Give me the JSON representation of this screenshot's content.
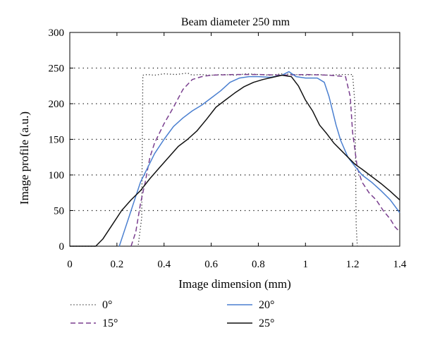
{
  "chart_data": {
    "type": "line",
    "title": "Beam diameter 250 mm",
    "xlabel": "Image dimension (mm)",
    "ylabel": "Image profile (a.u.)",
    "xlim": [
      0,
      1.4
    ],
    "ylim": [
      0,
      300
    ],
    "xticks": [
      "0",
      "0.2",
      "0.4",
      "0.6",
      "0.8",
      "1",
      "1.2",
      "1.4"
    ],
    "yticks": [
      "0",
      "50",
      "100",
      "150",
      "200",
      "250",
      "300"
    ],
    "grid": "dotted horizontal",
    "legend_position": "bottom",
    "series": [
      {
        "name": "0°",
        "color": "#333333",
        "style": "dotted",
        "points": [
          [
            0,
            0
          ],
          [
            0.29,
            0
          ],
          [
            0.305,
            40
          ],
          [
            0.31,
            240
          ],
          [
            0.33,
            241
          ],
          [
            0.36,
            240
          ],
          [
            0.4,
            242
          ],
          [
            0.45,
            241
          ],
          [
            0.5,
            243
          ],
          [
            0.52,
            240
          ],
          [
            0.55,
            241
          ],
          [
            0.6,
            240
          ],
          [
            0.65,
            241
          ],
          [
            0.7,
            240
          ],
          [
            0.75,
            242
          ],
          [
            0.8,
            241
          ],
          [
            0.85,
            240
          ],
          [
            0.9,
            242
          ],
          [
            0.95,
            241
          ],
          [
            1.0,
            240
          ],
          [
            1.05,
            241
          ],
          [
            1.1,
            240
          ],
          [
            1.15,
            241
          ],
          [
            1.2,
            241
          ],
          [
            1.21,
            200
          ],
          [
            1.215,
            30
          ],
          [
            1.22,
            0
          ],
          [
            1.4,
            0
          ]
        ]
      },
      {
        "name": "15°",
        "color": "#7a3f8f",
        "style": "dashed",
        "points": [
          [
            0.26,
            0
          ],
          [
            0.28,
            20
          ],
          [
            0.3,
            60
          ],
          [
            0.32,
            90
          ],
          [
            0.34,
            125
          ],
          [
            0.36,
            145
          ],
          [
            0.4,
            172
          ],
          [
            0.44,
            195
          ],
          [
            0.48,
            220
          ],
          [
            0.52,
            234
          ],
          [
            0.56,
            238
          ],
          [
            0.6,
            240
          ],
          [
            0.7,
            241
          ],
          [
            0.8,
            241
          ],
          [
            0.9,
            240
          ],
          [
            1.0,
            241
          ],
          [
            1.1,
            240
          ],
          [
            1.17,
            238
          ],
          [
            1.19,
            210
          ],
          [
            1.2,
            160
          ],
          [
            1.22,
            110
          ],
          [
            1.24,
            90
          ],
          [
            1.27,
            75
          ],
          [
            1.3,
            65
          ],
          [
            1.33,
            50
          ],
          [
            1.36,
            38
          ],
          [
            1.38,
            27
          ],
          [
            1.4,
            20
          ]
        ]
      },
      {
        "name": "20°",
        "color": "#4a7fd0",
        "style": "solid",
        "points": [
          [
            0.21,
            0
          ],
          [
            0.23,
            20
          ],
          [
            0.25,
            40
          ],
          [
            0.28,
            70
          ],
          [
            0.3,
            90
          ],
          [
            0.33,
            110
          ],
          [
            0.36,
            130
          ],
          [
            0.4,
            150
          ],
          [
            0.44,
            168
          ],
          [
            0.48,
            180
          ],
          [
            0.52,
            190
          ],
          [
            0.56,
            198
          ],
          [
            0.6,
            208
          ],
          [
            0.64,
            218
          ],
          [
            0.68,
            230
          ],
          [
            0.72,
            236
          ],
          [
            0.76,
            238
          ],
          [
            0.8,
            238
          ],
          [
            0.85,
            237
          ],
          [
            0.9,
            240
          ],
          [
            0.93,
            245
          ],
          [
            0.96,
            238
          ],
          [
            1.0,
            236
          ],
          [
            1.05,
            236
          ],
          [
            1.08,
            230
          ],
          [
            1.1,
            210
          ],
          [
            1.13,
            170
          ],
          [
            1.15,
            148
          ],
          [
            1.18,
            125
          ],
          [
            1.21,
            112
          ],
          [
            1.24,
            100
          ],
          [
            1.28,
            90
          ],
          [
            1.32,
            78
          ],
          [
            1.36,
            65
          ],
          [
            1.4,
            47
          ]
        ]
      },
      {
        "name": "25°",
        "color": "#111111",
        "style": "solid",
        "points": [
          [
            0,
            0
          ],
          [
            0.11,
            0
          ],
          [
            0.14,
            10
          ],
          [
            0.18,
            30
          ],
          [
            0.22,
            50
          ],
          [
            0.26,
            65
          ],
          [
            0.3,
            78
          ],
          [
            0.34,
            95
          ],
          [
            0.38,
            110
          ],
          [
            0.42,
            125
          ],
          [
            0.46,
            140
          ],
          [
            0.5,
            150
          ],
          [
            0.54,
            162
          ],
          [
            0.58,
            178
          ],
          [
            0.62,
            195
          ],
          [
            0.66,
            205
          ],
          [
            0.7,
            215
          ],
          [
            0.74,
            224
          ],
          [
            0.78,
            230
          ],
          [
            0.82,
            234
          ],
          [
            0.86,
            237
          ],
          [
            0.9,
            240
          ],
          [
            0.94,
            238
          ],
          [
            0.97,
            225
          ],
          [
            1.0,
            205
          ],
          [
            1.03,
            190
          ],
          [
            1.06,
            170
          ],
          [
            1.09,
            158
          ],
          [
            1.12,
            145
          ],
          [
            1.15,
            135
          ],
          [
            1.18,
            125
          ],
          [
            1.21,
            115
          ],
          [
            1.24,
            108
          ],
          [
            1.28,
            98
          ],
          [
            1.32,
            88
          ],
          [
            1.36,
            77
          ],
          [
            1.4,
            65
          ]
        ]
      }
    ]
  }
}
